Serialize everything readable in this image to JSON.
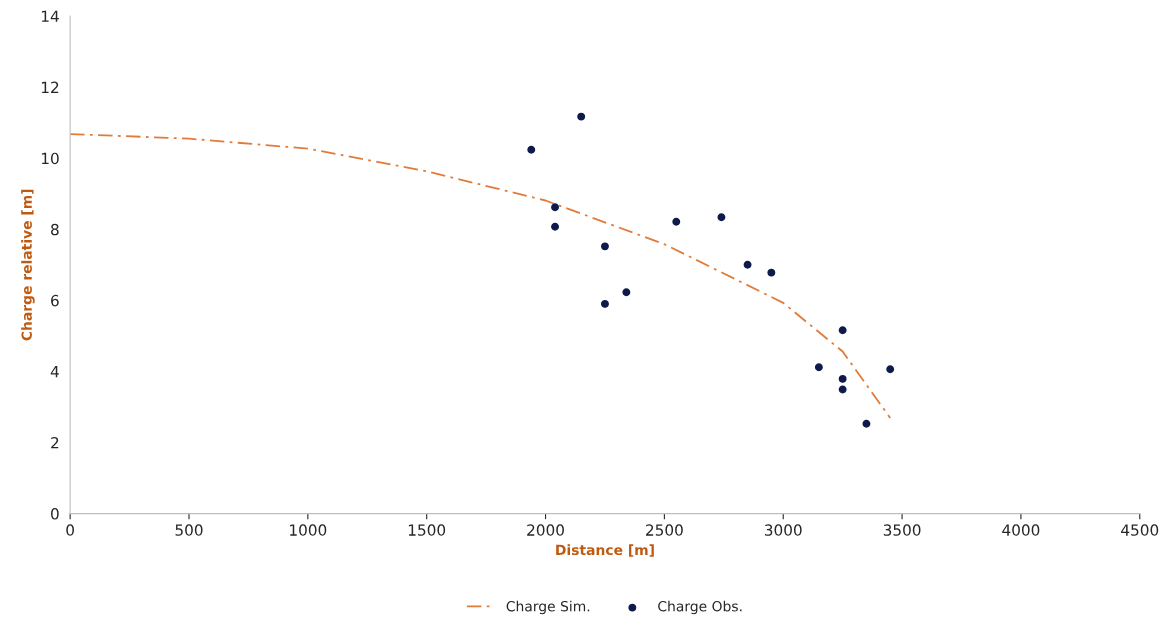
{
  "chart_data": {
    "type": "scatter",
    "xlabel": "Distance [m]",
    "ylabel": "Charge relative [m]",
    "xlim": [
      0,
      4500
    ],
    "xticks": [
      0,
      500,
      1000,
      1500,
      2000,
      2500,
      3000,
      3500,
      4000,
      4500
    ],
    "ylim": [
      0,
      14
    ],
    "yticks": [
      0,
      2,
      4,
      6,
      8,
      10,
      12,
      14
    ],
    "grid": false,
    "legend": "bottom",
    "series": [
      {
        "name": "Charge Sim.",
        "type": "line",
        "color": "#e07b39",
        "line_style": "dashed",
        "marker": "none",
        "x": [
          0,
          500,
          1000,
          1500,
          2000,
          2500,
          3000,
          3250,
          3450
        ],
        "values": [
          10.68,
          10.55,
          10.27,
          9.63,
          8.81,
          7.58,
          5.93,
          4.56,
          2.69
        ]
      },
      {
        "name": "Charge Obs.",
        "color": "#0d1a4a",
        "marker": "circle",
        "x": [
          1940,
          2150,
          2040,
          2040,
          2250,
          2250,
          2340,
          2550,
          2740,
          2850,
          2950,
          3150,
          3250,
          3250,
          3250,
          3350,
          3450
        ],
        "values": [
          10.24,
          11.17,
          8.62,
          8.07,
          7.52,
          5.9,
          6.23,
          8.21,
          8.34,
          7.0,
          6.78,
          4.12,
          5.16,
          3.79,
          3.49,
          2.53,
          4.06
        ]
      }
    ]
  }
}
